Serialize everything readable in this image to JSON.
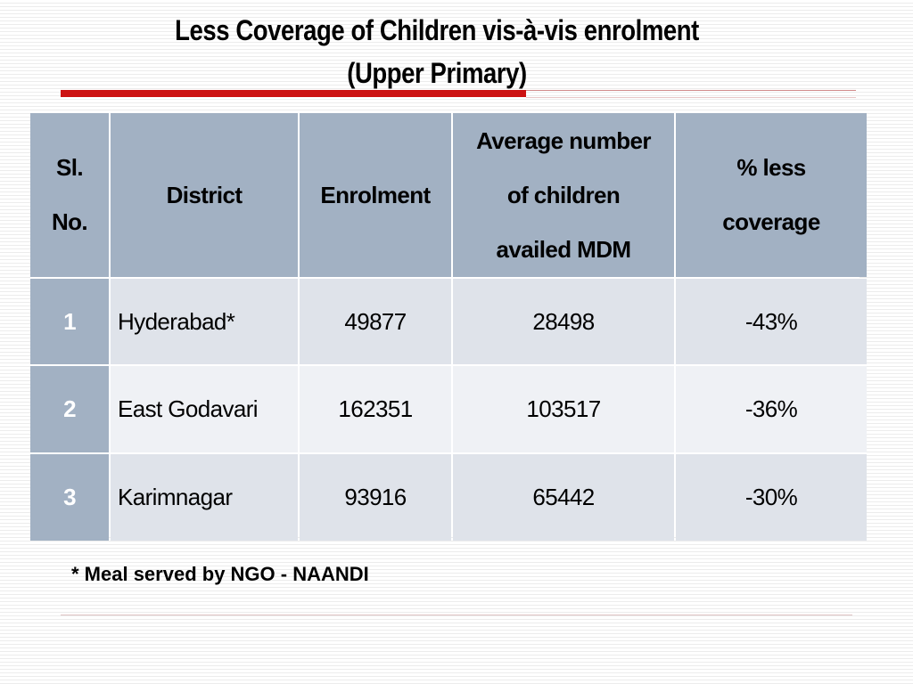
{
  "slide": {
    "title_line1": "Less Coverage of Children vis-à-vis enrolment",
    "title_line2": "(Upper Primary)",
    "accent_color": "#cc1111"
  },
  "table": {
    "headers": [
      [
        "Sl.",
        "No."
      ],
      [
        "District"
      ],
      [
        "Enrolment"
      ],
      [
        "Average number",
        "of children",
        "availed MDM"
      ],
      [
        "% less",
        "coverage"
      ]
    ],
    "rows": [
      [
        "1",
        "Hyderabad*",
        "49877",
        "28498",
        "-43%"
      ],
      [
        "2",
        "East Godavari",
        "162351",
        "103517",
        "-36%"
      ],
      [
        "3",
        "Karimnagar",
        "93916",
        "65442",
        "-30%"
      ]
    ],
    "header_color": "#a2b1c3"
  },
  "footnote": "* Meal served by NGO - NAANDI"
}
